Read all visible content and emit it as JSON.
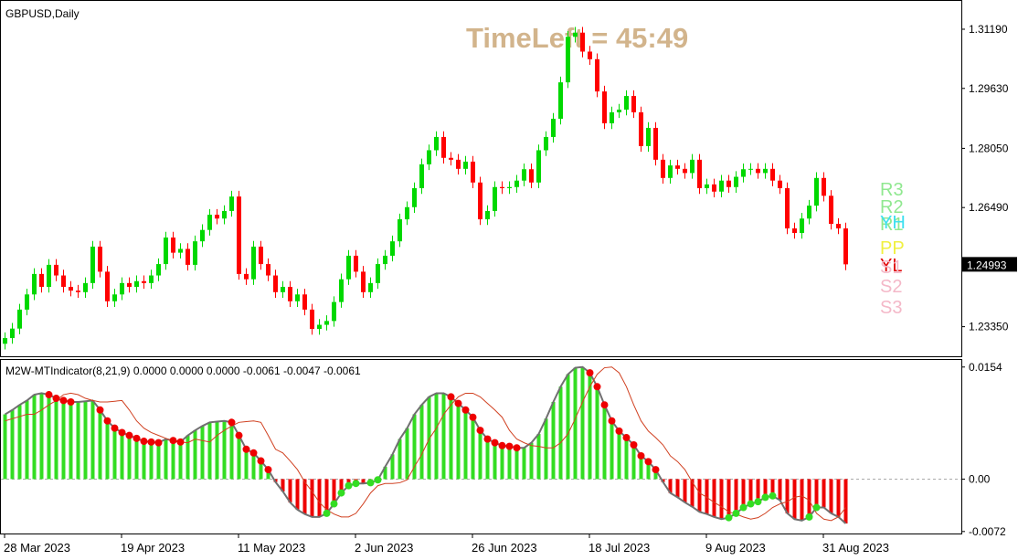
{
  "chart_data": [
    {
      "type": "candlestick",
      "title": "GBPUSD,Daily",
      "annotation": "TimeLeft = 45:49",
      "categories": [
        "28 Mar 2023",
        null,
        null,
        null,
        null,
        null,
        null,
        null,
        null,
        null,
        null,
        null,
        null,
        null,
        null,
        null,
        "19 Apr 2023",
        null,
        null,
        null,
        null,
        null,
        null,
        null,
        null,
        null,
        null,
        null,
        null,
        null,
        null,
        null,
        "11 May 2023",
        null,
        null,
        null,
        null,
        null,
        null,
        null,
        null,
        null,
        null,
        null,
        null,
        null,
        null,
        null,
        "2 Jun 2023",
        null,
        null,
        null,
        null,
        null,
        null,
        null,
        null,
        null,
        null,
        null,
        null,
        null,
        null,
        null,
        "26 Jun 2023",
        null,
        null,
        null,
        null,
        null,
        null,
        null,
        null,
        null,
        null,
        null,
        null,
        null,
        null,
        null,
        "18 Jul 2023",
        null,
        null,
        null,
        null,
        null,
        null,
        null,
        null,
        null,
        null,
        null,
        null,
        null,
        null,
        null,
        "9 Aug 2023",
        null,
        null,
        null,
        null,
        null,
        null,
        null,
        null,
        null,
        null,
        null,
        null,
        null,
        null,
        null,
        "31 Aug 2023",
        null,
        null,
        null
      ],
      "open": [
        1.229,
        1.2305,
        1.233,
        1.238,
        1.242,
        1.2474,
        1.244,
        1.2498,
        1.247,
        1.244,
        1.243,
        1.2426,
        1.245,
        1.2546,
        1.248,
        1.2402,
        1.242,
        1.245,
        1.244,
        1.2455,
        1.245,
        1.247,
        1.25,
        1.257,
        1.253,
        1.254,
        1.2498,
        1.256,
        1.259,
        1.263,
        1.262,
        1.264,
        1.2678,
        1.2474,
        1.246,
        1.2546,
        1.25,
        1.247,
        1.2426,
        1.244,
        1.2402,
        1.242,
        1.238,
        1.2329,
        1.234,
        1.235,
        1.24,
        1.246,
        1.2522,
        1.248,
        1.2426,
        1.245,
        1.25,
        1.2522,
        1.256,
        1.2618,
        1.265,
        1.27,
        1.2763,
        1.28,
        1.2835,
        1.278,
        1.2775,
        1.2751,
        1.277,
        1.2715,
        1.2618,
        1.264,
        1.2703,
        1.27,
        1.2703,
        1.272,
        1.275,
        1.2715,
        1.28,
        1.2835,
        1.2883,
        1.2979,
        1.3099,
        1.311,
        1.306,
        1.304,
        1.2955,
        1.2871,
        1.29,
        1.2907,
        1.2943,
        1.29,
        1.2811,
        1.2859,
        1.2775,
        1.2727,
        1.276,
        1.2751,
        1.274,
        1.2775,
        1.27,
        1.271,
        1.2691,
        1.272,
        1.2703,
        1.273,
        1.275,
        1.2751,
        1.274,
        1.2751,
        1.272,
        1.27,
        1.2594,
        1.2582,
        1.262,
        1.2654,
        1.2727,
        1.268,
        1.2606,
        1.2594
      ],
      "high": [
        1.232,
        1.2345,
        1.2395,
        1.2435,
        1.2489,
        1.2489,
        1.2513,
        1.2513,
        1.2485,
        1.2455,
        1.2445,
        1.2465,
        1.2561,
        1.2561,
        1.2495,
        1.2435,
        1.2465,
        1.2465,
        1.247,
        1.247,
        1.2485,
        1.2515,
        1.2585,
        1.2585,
        1.2555,
        1.2555,
        1.2575,
        1.2605,
        1.2645,
        1.2645,
        1.2655,
        1.2693,
        1.2693,
        1.2489,
        1.2561,
        1.2561,
        1.2515,
        1.2485,
        1.2455,
        1.2455,
        1.2435,
        1.2435,
        1.2395,
        1.2355,
        1.2365,
        1.2415,
        1.2475,
        1.2537,
        1.2537,
        1.2495,
        1.2465,
        1.2515,
        1.2537,
        1.2575,
        1.2633,
        1.2665,
        1.2715,
        1.2778,
        1.2815,
        1.285,
        1.285,
        1.2795,
        1.279,
        1.2785,
        1.2785,
        1.273,
        1.2655,
        1.2718,
        1.2718,
        1.2718,
        1.2735,
        1.2765,
        1.2765,
        1.2815,
        1.285,
        1.2898,
        1.2994,
        1.3114,
        1.3125,
        1.3125,
        1.3075,
        1.3055,
        1.297,
        1.2915,
        1.2922,
        1.2958,
        1.2958,
        1.2915,
        1.2874,
        1.2874,
        1.279,
        1.2775,
        1.2775,
        1.2766,
        1.279,
        1.279,
        1.2725,
        1.2725,
        1.2735,
        1.2735,
        1.2745,
        1.2765,
        1.2766,
        1.2766,
        1.2766,
        1.2766,
        1.2735,
        1.2715,
        1.2609,
        1.2635,
        1.2669,
        1.2742,
        1.2742,
        1.2695,
        1.2621,
        1.2609
      ],
      "low": [
        1.2275,
        1.229,
        1.2315,
        1.2365,
        1.2405,
        1.2425,
        1.2425,
        1.2455,
        1.2425,
        1.2415,
        1.2411,
        1.2411,
        1.2435,
        1.2465,
        1.2387,
        1.2387,
        1.2405,
        1.2425,
        1.2425,
        1.2435,
        1.2435,
        1.2455,
        1.2485,
        1.2515,
        1.2515,
        1.2483,
        1.2483,
        1.2545,
        1.2575,
        1.2605,
        1.2605,
        1.2625,
        1.2459,
        1.2445,
        1.2445,
        1.2485,
        1.2455,
        1.2411,
        1.2411,
        1.2387,
        1.2387,
        1.2365,
        1.2314,
        1.2314,
        1.2325,
        1.2335,
        1.2385,
        1.2445,
        1.2465,
        1.2411,
        1.2411,
        1.2435,
        1.2485,
        1.2507,
        1.2545,
        1.2603,
        1.2635,
        1.2685,
        1.2748,
        1.2785,
        1.2765,
        1.276,
        1.2736,
        1.2736,
        1.27,
        1.2603,
        1.2603,
        1.2625,
        1.2685,
        1.2685,
        1.2688,
        1.2705,
        1.27,
        1.27,
        1.2785,
        1.282,
        1.2868,
        1.2964,
        1.3084,
        1.3045,
        1.3025,
        1.294,
        1.2856,
        1.2856,
        1.2885,
        1.2892,
        1.2885,
        1.2796,
        1.2796,
        1.276,
        1.2712,
        1.2712,
        1.2736,
        1.2725,
        1.2725,
        1.2685,
        1.2685,
        1.2676,
        1.2676,
        1.2688,
        1.2688,
        1.2715,
        1.2735,
        1.2725,
        1.2725,
        1.2705,
        1.2685,
        1.2579,
        1.2567,
        1.2567,
        1.2605,
        1.2639,
        1.2665,
        1.2591,
        1.2579,
        1.2484
      ],
      "close": [
        1.2305,
        1.233,
        1.238,
        1.242,
        1.2474,
        1.244,
        1.2498,
        1.247,
        1.244,
        1.243,
        1.2426,
        1.245,
        1.2546,
        1.248,
        1.2402,
        1.242,
        1.245,
        1.244,
        1.2455,
        1.245,
        1.247,
        1.25,
        1.257,
        1.253,
        1.254,
        1.2498,
        1.256,
        1.259,
        1.263,
        1.262,
        1.264,
        1.2678,
        1.2474,
        1.246,
        1.2546,
        1.25,
        1.247,
        1.2426,
        1.244,
        1.2402,
        1.242,
        1.238,
        1.2329,
        1.234,
        1.235,
        1.24,
        1.246,
        1.2522,
        1.248,
        1.2426,
        1.245,
        1.25,
        1.2522,
        1.256,
        1.2618,
        1.265,
        1.27,
        1.2763,
        1.28,
        1.2835,
        1.278,
        1.2775,
        1.2751,
        1.277,
        1.2715,
        1.2618,
        1.264,
        1.2703,
        1.27,
        1.2703,
        1.272,
        1.275,
        1.2715,
        1.28,
        1.2835,
        1.2883,
        1.2979,
        1.3099,
        1.311,
        1.306,
        1.304,
        1.2955,
        1.2871,
        1.29,
        1.2907,
        1.2943,
        1.29,
        1.2811,
        1.2859,
        1.2775,
        1.2727,
        1.276,
        1.2751,
        1.274,
        1.2775,
        1.27,
        1.271,
        1.2691,
        1.272,
        1.2703,
        1.273,
        1.275,
        1.2751,
        1.274,
        1.2751,
        1.272,
        1.27,
        1.2594,
        1.2582,
        1.262,
        1.2654,
        1.2727,
        1.268,
        1.2606,
        1.2594,
        1.24993
      ],
      "up_color": "#00d800",
      "down_color": "#ff0000",
      "ylim": [
        1.2257,
        1.3196
      ],
      "yticks": [
        {
          "value": 1.3119,
          "label": "1.31190"
        },
        {
          "value": 1.2963,
          "label": "1.29630"
        },
        {
          "value": 1.2805,
          "label": "1.28050"
        },
        {
          "value": 1.2649,
          "label": "1.26490"
        },
        {
          "value": 1.2335,
          "label": "1.23350"
        }
      ],
      "last_price": 1.24993,
      "levels": [
        {
          "name": "R3",
          "color": "#90e890"
        },
        {
          "name": "R2",
          "color": "#90e890"
        },
        {
          "name": "R1",
          "color": "#90e890"
        },
        {
          "name": "YH",
          "color": "#40e0f0"
        },
        {
          "name": "PP",
          "color": "#f0f040"
        },
        {
          "name": "YL",
          "color": "#e00000"
        },
        {
          "name": "S1",
          "color": "#f4b8c8"
        },
        {
          "name": "S2",
          "color": "#f4b8c8"
        },
        {
          "name": "S3",
          "color": "#f4b8c8"
        }
      ]
    },
    {
      "type": "bar",
      "title": "M2W-MTIndicator(8,21,9) 0.0000 0.0000 0.0000 -0.0061 -0.0047 -0.0061",
      "values": [
        0.0089,
        0.0095,
        0.0102,
        0.0108,
        0.0116,
        0.0118,
        0.0116,
        0.0111,
        0.0108,
        0.0106,
        0.0106,
        0.0107,
        0.0108,
        0.0095,
        0.008,
        0.007,
        0.0064,
        0.006,
        0.0056,
        0.0052,
        0.0051,
        0.005,
        0.0055,
        0.0053,
        0.0051,
        0.006,
        0.0067,
        0.0073,
        0.0078,
        0.0079,
        0.008,
        0.0078,
        0.006,
        0.0041,
        0.0036,
        0.0025,
        0.0013,
        -0.0004,
        -0.0017,
        -0.0032,
        -0.0042,
        -0.0048,
        -0.0052,
        -0.0052,
        -0.0047,
        -0.0034,
        -0.0019,
        -0.0009,
        -0.0006,
        -0.0006,
        -0.0005,
        -0.0001,
        0.0017,
        0.0034,
        0.0055,
        0.007,
        0.0089,
        0.0102,
        0.0113,
        0.0118,
        0.0118,
        0.0113,
        0.0104,
        0.0095,
        0.0085,
        0.0067,
        0.0055,
        0.005,
        0.0046,
        0.0045,
        0.0043,
        0.0043,
        0.005,
        0.0062,
        0.0083,
        0.0106,
        0.0127,
        0.0144,
        0.0153,
        0.0154,
        0.0146,
        0.0127,
        0.0102,
        0.008,
        0.0066,
        0.0057,
        0.0047,
        0.0032,
        0.0024,
        0.0013,
        -0.0004,
        -0.0019,
        -0.0025,
        -0.0032,
        -0.0038,
        -0.0045,
        -0.0048,
        -0.0052,
        -0.0055,
        -0.0053,
        -0.0047,
        -0.0039,
        -0.0034,
        -0.0031,
        -0.0025,
        -0.0023,
        -0.0029,
        -0.0047,
        -0.0055,
        -0.0057,
        -0.0052,
        -0.0039,
        -0.0039,
        -0.0047,
        -0.0052,
        -0.0061
      ],
      "signal": [
        0.008,
        0.0083,
        0.0086,
        0.0089,
        0.0089,
        0.0095,
        0.0102,
        0.0108,
        0.0116,
        0.0118,
        0.0116,
        0.0111,
        0.0108,
        0.0106,
        0.0106,
        0.0107,
        0.0108,
        0.0095,
        0.008,
        0.007,
        0.0064,
        0.006,
        0.0056,
        0.0052,
        0.0051,
        0.005,
        0.0055,
        0.0053,
        0.0051,
        0.006,
        0.0067,
        0.0073,
        0.0078,
        0.0079,
        0.008,
        0.0078,
        0.006,
        0.0041,
        0.0036,
        0.0025,
        0.0013,
        -0.0004,
        -0.0017,
        -0.0032,
        -0.0042,
        -0.0048,
        -0.0052,
        -0.0052,
        -0.0047,
        -0.0034,
        -0.0019,
        -0.0009,
        -0.0006,
        -0.0006,
        -0.0005,
        -0.0001,
        0.0017,
        0.0034,
        0.0055,
        0.007,
        0.0089,
        0.0102,
        0.0113,
        0.0118,
        0.0118,
        0.0113,
        0.0104,
        0.0095,
        0.0085,
        0.0067,
        0.0055,
        0.005,
        0.0046,
        0.0045,
        0.0043,
        0.0043,
        0.005,
        0.0062,
        0.0083,
        0.0106,
        0.0127,
        0.0144,
        0.0153,
        0.0154,
        0.0146,
        0.0127,
        0.0102,
        0.008,
        0.0066,
        0.0057,
        0.0047,
        0.0032,
        0.0024,
        0.0013,
        -0.0004,
        -0.0019,
        -0.0025,
        -0.0032,
        -0.0038,
        -0.0045,
        -0.0048,
        -0.0052,
        -0.0055,
        -0.0053,
        -0.0047,
        -0.0039,
        -0.0034,
        -0.0031,
        -0.0025,
        -0.0023,
        -0.0029,
        -0.0047,
        -0.0055,
        -0.0057,
        -0.0052,
        -0.0039
      ],
      "up_color": "#33dd22",
      "down_color": "#ee0000",
      "signal_color": "#d04020",
      "outline_color": "#707070",
      "ylim": [
        -0.0076,
        0.0165
      ],
      "yticks": [
        0.0154,
        {
          "value": 0,
          "label": "0.00"
        },
        -0.0072
      ]
    }
  ]
}
